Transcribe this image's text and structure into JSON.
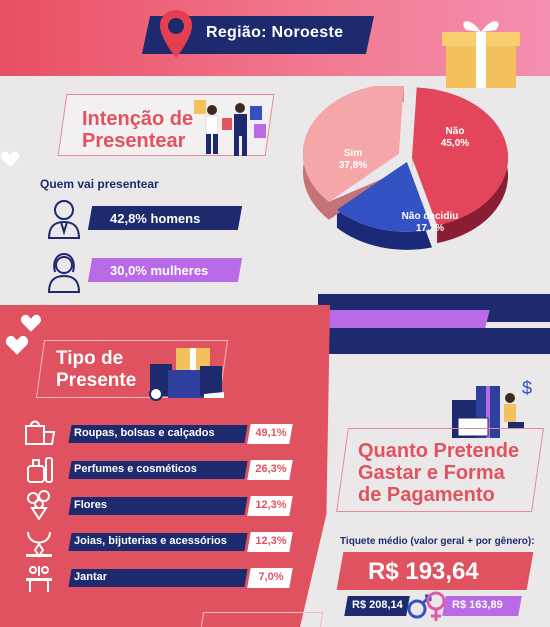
{
  "header": {
    "region_label": "Região: Noroeste"
  },
  "intention": {
    "title_line1": "Intenção de",
    "title_line2": "Presentear",
    "who_label": "Quem vai presentear",
    "men": "42,8% homens",
    "women": "30,0% mulheres"
  },
  "chart_data": {
    "type": "pie",
    "categories": [
      "Não",
      "Não decidiu",
      "Sim"
    ],
    "values": [
      45.0,
      17.2,
      37.8
    ],
    "labels": [
      "Não",
      "Não decidiu",
      "Sim"
    ],
    "value_labels": [
      "45,0%",
      "17,2%",
      "37,8%"
    ],
    "colors": [
      "#e3465a",
      "#3552c4",
      "#f4a6a8"
    ]
  },
  "gift_type": {
    "title_line1": "Tipo de",
    "title_line2": "Presente",
    "items": [
      {
        "label": "Roupas, bolsas e calçados",
        "pct": "49,1%",
        "icon": "clothes-icon"
      },
      {
        "label": "Perfumes e cosméticos",
        "pct": "26,3%",
        "icon": "perfume-icon"
      },
      {
        "label": "Flores",
        "pct": "12,3%",
        "icon": "flowers-icon"
      },
      {
        "label": "Joias, bijuterias e acessórios",
        "pct": "12,3%",
        "icon": "jewelry-icon"
      },
      {
        "label": "Jantar",
        "pct": "7,0%",
        "icon": "dinner-icon"
      }
    ]
  },
  "payment": {
    "title_line1": "Quanto Pretende",
    "title_line2": "Gastar e Forma",
    "title_line3": "de Pagamento",
    "ticket_label": "Tiquete médio (valor geral + por gênero):",
    "ticket_value": "R$ 193,64",
    "men_value": "R$ 208,14",
    "women_value": "R$ 163,89"
  }
}
